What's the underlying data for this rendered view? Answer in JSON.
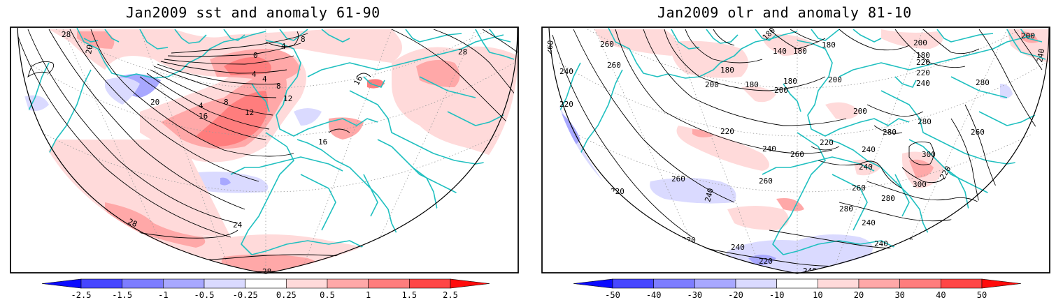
{
  "panels": [
    {
      "title": "Jan2009 sst and anomaly 61-90",
      "colorbar": {
        "ticks": [
          "-2.5",
          "-1.5",
          "-1",
          "-0.5",
          "-0.25",
          "0.25",
          "0.5",
          "1",
          "1.5",
          "2.5"
        ],
        "colors": [
          "#0b0bff",
          "#4646ff",
          "#7d7dff",
          "#a8a8ff",
          "#dadaff",
          "#ffffff",
          "#ffdada",
          "#ffa8a8",
          "#ff7d7d",
          "#ff4646",
          "#ff0b0b"
        ]
      },
      "contour_labels": [
        "28",
        "20",
        "0",
        "4",
        "4",
        "8",
        "4",
        "8",
        "12",
        "16",
        "20",
        "16",
        "4",
        "8",
        "12",
        "16",
        "28",
        "24",
        "28",
        "28"
      ]
    },
    {
      "title": "Jan2009 olr and anomaly 81-10",
      "colorbar": {
        "ticks": [
          "-50",
          "-40",
          "-30",
          "-20",
          "-10",
          "10",
          "20",
          "30",
          "40",
          "50"
        ],
        "colors": [
          "#0b0bff",
          "#4646ff",
          "#7d7dff",
          "#a8a8ff",
          "#dadaff",
          "#ffffff",
          "#ffdada",
          "#ffa8a8",
          "#ff7d7d",
          "#ff4646",
          "#ff0b0b"
        ]
      },
      "contour_labels": [
        "260",
        "260",
        "260",
        "240",
        "220",
        "180",
        "180",
        "140",
        "180",
        "180",
        "200",
        "180",
        "200",
        "180",
        "200",
        "200",
        "200",
        "220",
        "240",
        "200",
        "180",
        "280",
        "240",
        "220",
        "220",
        "240",
        "260",
        "260",
        "220",
        "240",
        "280",
        "300",
        "300",
        "280",
        "240",
        "260",
        "280",
        "260",
        "220",
        "240",
        "220",
        "240",
        "260",
        "280",
        "220",
        "240",
        "220",
        "220",
        "240",
        "240"
      ]
    }
  ]
}
